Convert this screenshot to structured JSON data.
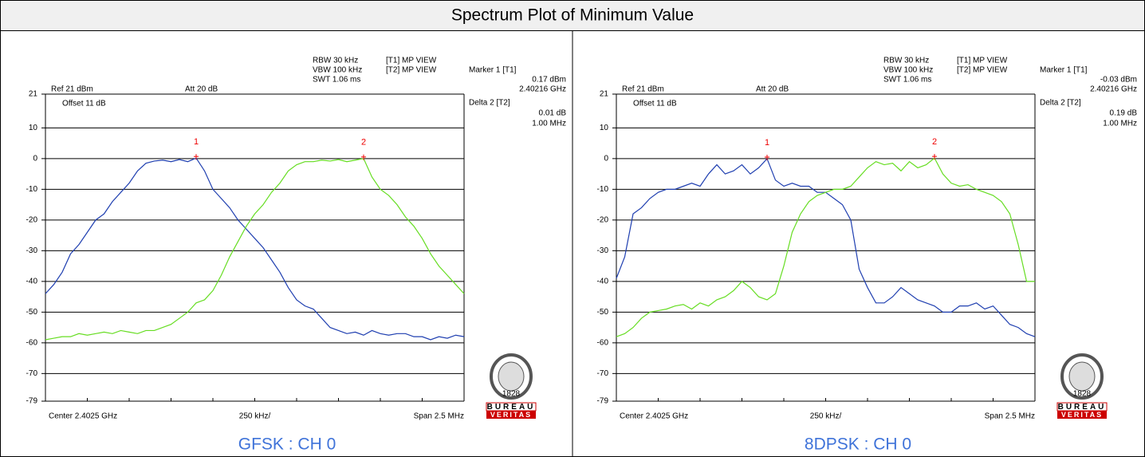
{
  "title": "Spectrum Plot of Minimum Value",
  "logo": {
    "name_top": "BUREAU",
    "name_bottom": "VERITAS",
    "year": "1828"
  },
  "chart_data": [
    {
      "type": "line",
      "caption": "GFSK : CH 0",
      "settings": {
        "ref": "Ref 21 dBm",
        "att": "Att 20 dB",
        "offset": "Offset 11 dB",
        "rbw": "RBW 30 kHz",
        "vbw": "VBW 100 kHz",
        "swt": "SWT 1.06 ms",
        "trace1": "[T1] MP VIEW",
        "trace2": "[T2] MP VIEW"
      },
      "readout": {
        "marker_title": "Marker 1 [T1]",
        "marker_level": "0.17 dBm",
        "marker_freq": "2.40216 GHz",
        "delta_title": "Delta 2 [T2]",
        "delta_level": "0.01 dB",
        "delta_freq": "1.00 MHz"
      },
      "x_labels": {
        "center": "Center 2.4025 GHz",
        "div": "250 kHz/",
        "span": "Span 2.5 MHz"
      },
      "markers": [
        "1",
        "2"
      ],
      "ylim": [
        -79,
        21
      ],
      "yticks": [
        21,
        10,
        0,
        -10,
        -20,
        -30,
        -40,
        -50,
        -60,
        -70,
        -79
      ],
      "grid": true,
      "series": [
        {
          "color": "#1f3fb0",
          "values": [
            -44,
            -41,
            -37,
            -31,
            -28,
            -24,
            -20,
            -18,
            -14,
            -11,
            -8,
            -4,
            -1.5,
            -0.8,
            -0.5,
            -1,
            -0.3,
            -1,
            0.17,
            -4,
            -10,
            -13,
            -16,
            -20,
            -23,
            -26,
            -29,
            -33,
            -37,
            -42,
            -46,
            -48,
            -49,
            -52,
            -55,
            -56,
            -57,
            -56.5,
            -57.5,
            -56,
            -57,
            -57.5,
            -57,
            -57,
            -58,
            -58,
            -59,
            -58,
            -58.5,
            -57.5,
            -58
          ]
        },
        {
          "color": "#66dd22",
          "values": [
            -59,
            -58.5,
            -58,
            -58,
            -57,
            -57.5,
            -57,
            -56.5,
            -57,
            -56,
            -56.5,
            -57,
            -56,
            -56,
            -55,
            -54,
            -52,
            -50,
            -47,
            -46,
            -43,
            -38,
            -32,
            -27,
            -22,
            -18,
            -15,
            -11,
            -8,
            -4,
            -2,
            -1,
            -1,
            -0.5,
            -0.8,
            -0.3,
            -1,
            -0.5,
            0.01,
            -6,
            -10,
            -12,
            -15,
            -19,
            -22,
            -26,
            -31,
            -35,
            -38,
            -41,
            -44
          ]
        }
      ]
    },
    {
      "type": "line",
      "caption": "8DPSK : CH 0",
      "settings": {
        "ref": "Ref 21 dBm",
        "att": "Att 20 dB",
        "offset": "Offset 11 dB",
        "rbw": "RBW 30 kHz",
        "vbw": "VBW 100 kHz",
        "swt": "SWT 1.06 ms",
        "trace1": "[T1] MP VIEW",
        "trace2": "[T2] MP VIEW"
      },
      "readout": {
        "marker_title": "Marker 1 [T1]",
        "marker_level": "-0.03 dBm",
        "marker_freq": "2.40216 GHz",
        "delta_title": "Delta 2 [T2]",
        "delta_level": "0.19 dB",
        "delta_freq": "1.00 MHz"
      },
      "x_labels": {
        "center": "Center 2.4025 GHz",
        "div": "250 kHz/",
        "span": "Span 2.5 MHz"
      },
      "markers": [
        "1",
        "2"
      ],
      "ylim": [
        -79,
        21
      ],
      "yticks": [
        21,
        10,
        0,
        -10,
        -20,
        -30,
        -40,
        -50,
        -60,
        -70,
        -79
      ],
      "grid": true,
      "series": [
        {
          "color": "#1f3fb0",
          "values": [
            -39,
            -32,
            -18,
            -16,
            -13,
            -11,
            -10,
            -10,
            -9,
            -8,
            -9,
            -5,
            -2,
            -5,
            -4,
            -2,
            -5,
            -3,
            -0.03,
            -7,
            -9,
            -8,
            -9,
            -9,
            -11,
            -11,
            -13,
            -15,
            -20,
            -36,
            -42,
            -47,
            -47,
            -45,
            -42,
            -44,
            -46,
            -47,
            -48,
            -50,
            -50,
            -48,
            -48,
            -47,
            -49,
            -48,
            -51,
            -54,
            -55,
            -57,
            -58
          ]
        },
        {
          "color": "#66dd22",
          "values": [
            -58,
            -57,
            -55,
            -52,
            -50,
            -49.5,
            -49,
            -48,
            -47.5,
            -49,
            -47,
            -48,
            -46,
            -45,
            -43,
            -40,
            -42,
            -45,
            -46,
            -44,
            -35,
            -24,
            -18,
            -14,
            -12,
            -11,
            -10,
            -10,
            -9,
            -6,
            -3,
            -1,
            -2,
            -1.5,
            -4,
            -1,
            -3,
            -2,
            0.19,
            -5,
            -8,
            -9,
            -8.5,
            -10,
            -11,
            -12,
            -14,
            -18,
            -28,
            -40,
            -40
          ]
        }
      ]
    }
  ]
}
